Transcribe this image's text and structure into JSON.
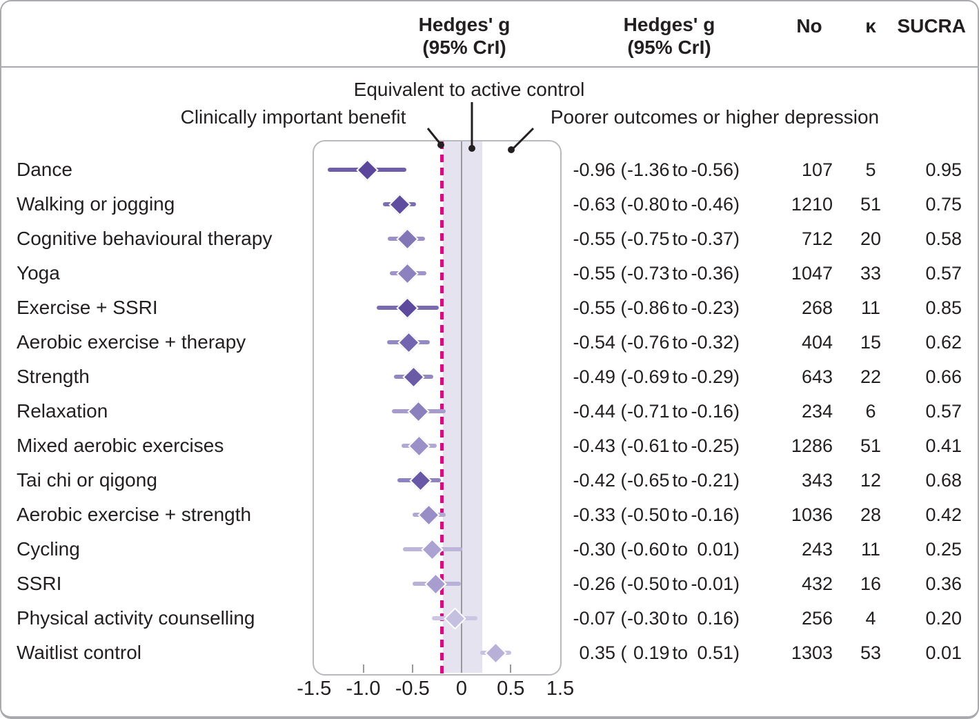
{
  "header": {
    "hedges_line1": "Hedges' g",
    "hedges_line2": "(95% CrI)",
    "col_no": "No",
    "col_k": "κ",
    "col_sucra": "SUCRA"
  },
  "annotations": {
    "equivalent": "Equivalent to active control",
    "benefit": "Clinically important benefit",
    "poorer": "Poorer outcomes or higher depression"
  },
  "chart_data": {
    "type": "forest",
    "effect_measure": "Hedges' g (95% CrI)",
    "x_axis": {
      "ticks": [
        {
          "value": -1.5,
          "label": "-1.5",
          "mark": false
        },
        {
          "value": -1.0,
          "label": "-1.0",
          "mark": true
        },
        {
          "value": -0.5,
          "label": "-0.5",
          "mark": true
        },
        {
          "value": 0,
          "label": "0",
          "mark": false
        },
        {
          "value": 0.5,
          "label": "0.5",
          "mark": true
        },
        {
          "value": 1.5,
          "label": "1.5",
          "mark": false
        }
      ]
    },
    "reference": {
      "dashed_line_value": -0.2,
      "dashed_line_color": "#d40f7d",
      "band_lo": -0.19,
      "band_hi": 0.21,
      "band_color": "#e6e3f1",
      "zero_line_color": "#97999c"
    },
    "rows": [
      {
        "label": "Dance",
        "est": -0.96,
        "lo": -1.36,
        "hi": -0.56,
        "est_text": "-0.96",
        "lo_text": "-1.36",
        "hi_text": "-0.56",
        "no": "107",
        "k": "5",
        "sucra": "0.95",
        "diamond_color": "#5a469b",
        "line_color": "#6f5dac"
      },
      {
        "label": "Walking or jogging",
        "est": -0.63,
        "lo": -0.8,
        "hi": -0.46,
        "est_text": "-0.63",
        "lo_text": "-0.80",
        "hi_text": "-0.46",
        "no": "1210",
        "k": "51",
        "sucra": "0.75",
        "diamond_color": "#5f4da0",
        "line_color": "#7d6db3"
      },
      {
        "label": "Cognitive behavioural therapy",
        "est": -0.55,
        "lo": -0.75,
        "hi": -0.37,
        "est_text": "-0.55",
        "lo_text": "-0.75",
        "hi_text": "-0.37",
        "no": "712",
        "k": "20",
        "sucra": "0.58",
        "diamond_color": "#8376b7",
        "line_color": "#9c90c7"
      },
      {
        "label": "Yoga",
        "est": -0.55,
        "lo": -0.73,
        "hi": -0.36,
        "est_text": "-0.55",
        "lo_text": "-0.73",
        "hi_text": "-0.36",
        "no": "1047",
        "k": "33",
        "sucra": "0.57",
        "diamond_color": "#8e81bf",
        "line_color": "#a094ca"
      },
      {
        "label": "Exercise + SSRI",
        "est": -0.55,
        "lo": -0.86,
        "hi": -0.23,
        "est_text": "-0.55",
        "lo_text": "-0.86",
        "hi_text": "-0.23",
        "no": "268",
        "k": "11",
        "sucra": "0.85",
        "diamond_color": "#5d4a9e",
        "line_color": "#7a6ab0"
      },
      {
        "label": "Aerobic exercise + therapy",
        "est": -0.54,
        "lo": -0.76,
        "hi": -0.32,
        "est_text": "-0.54",
        "lo_text": "-0.76",
        "hi_text": "-0.32",
        "no": "404",
        "k": "15",
        "sucra": "0.62",
        "diamond_color": "#7466ae",
        "line_color": "#9589c3"
      },
      {
        "label": "Strength",
        "est": -0.49,
        "lo": -0.69,
        "hi": -0.29,
        "est_text": "-0.49",
        "lo_text": "-0.69",
        "hi_text": "-0.29",
        "no": "643",
        "k": "22",
        "sucra": "0.66",
        "diamond_color": "#6b5ba7",
        "line_color": "#9287c0"
      },
      {
        "label": "Relaxation",
        "est": -0.44,
        "lo": -0.71,
        "hi": -0.16,
        "est_text": "-0.44",
        "lo_text": "-0.71",
        "hi_text": "-0.16",
        "no": "234",
        "k": "6",
        "sucra": "0.57",
        "diamond_color": "#8c7fbd",
        "line_color": "#a79bce"
      },
      {
        "label": "Mixed aerobic exercises",
        "est": -0.43,
        "lo": -0.61,
        "hi": -0.25,
        "est_text": "-0.43",
        "lo_text": "-0.61",
        "hi_text": "-0.25",
        "no": "1286",
        "k": "51",
        "sucra": "0.41",
        "diamond_color": "#9b90c7",
        "line_color": "#b1a8d4"
      },
      {
        "label": "Tai chi or qigong",
        "est": -0.42,
        "lo": -0.65,
        "hi": -0.21,
        "est_text": "-0.42",
        "lo_text": "-0.65",
        "hi_text": "-0.21",
        "no": "343",
        "k": "12",
        "sucra": "0.68",
        "diamond_color": "#6958a5",
        "line_color": "#8e82bf"
      },
      {
        "label": "Aerobic exercise + strength",
        "est": -0.33,
        "lo": -0.5,
        "hi": -0.16,
        "est_text": "-0.33",
        "lo_text": "-0.50",
        "hi_text": "-0.16",
        "no": "1036",
        "k": "28",
        "sucra": "0.42",
        "diamond_color": "#998dc5",
        "line_color": "#b1a8d4"
      },
      {
        "label": "Cycling",
        "est": -0.3,
        "lo": -0.6,
        "hi": 0.01,
        "est_text": "-0.30",
        "lo_text": "-0.60",
        "hi_text": "0.01",
        "no": "243",
        "k": "11",
        "sucra": "0.25",
        "diamond_color": "#aba2d1",
        "line_color": "#beb6da"
      },
      {
        "label": "SSRI",
        "est": -0.26,
        "lo": -0.5,
        "hi": -0.01,
        "est_text": "-0.26",
        "lo_text": "-0.50",
        "hi_text": "-0.01",
        "no": "432",
        "k": "16",
        "sucra": "0.36",
        "diamond_color": "#a79dce",
        "line_color": "#bab1d8"
      },
      {
        "label": "Physical activity counselling",
        "est": -0.07,
        "lo": -0.3,
        "hi": 0.16,
        "est_text": "-0.07",
        "lo_text": "-0.30",
        "hi_text": "0.16",
        "no": "256",
        "k": "4",
        "sucra": "0.20",
        "diamond_color": "#c5bfe0",
        "line_color": "#cbc5e3"
      },
      {
        "label": "Waitlist control",
        "est": 0.35,
        "lo": 0.19,
        "hi": 0.51,
        "est_text": "0.35",
        "lo_text": "0.19",
        "hi_text": "0.51",
        "no": "1303",
        "k": "53",
        "sucra": "0.01",
        "diamond_color": "#b9b0d8",
        "line_color": "#c7c0e1"
      }
    ]
  }
}
